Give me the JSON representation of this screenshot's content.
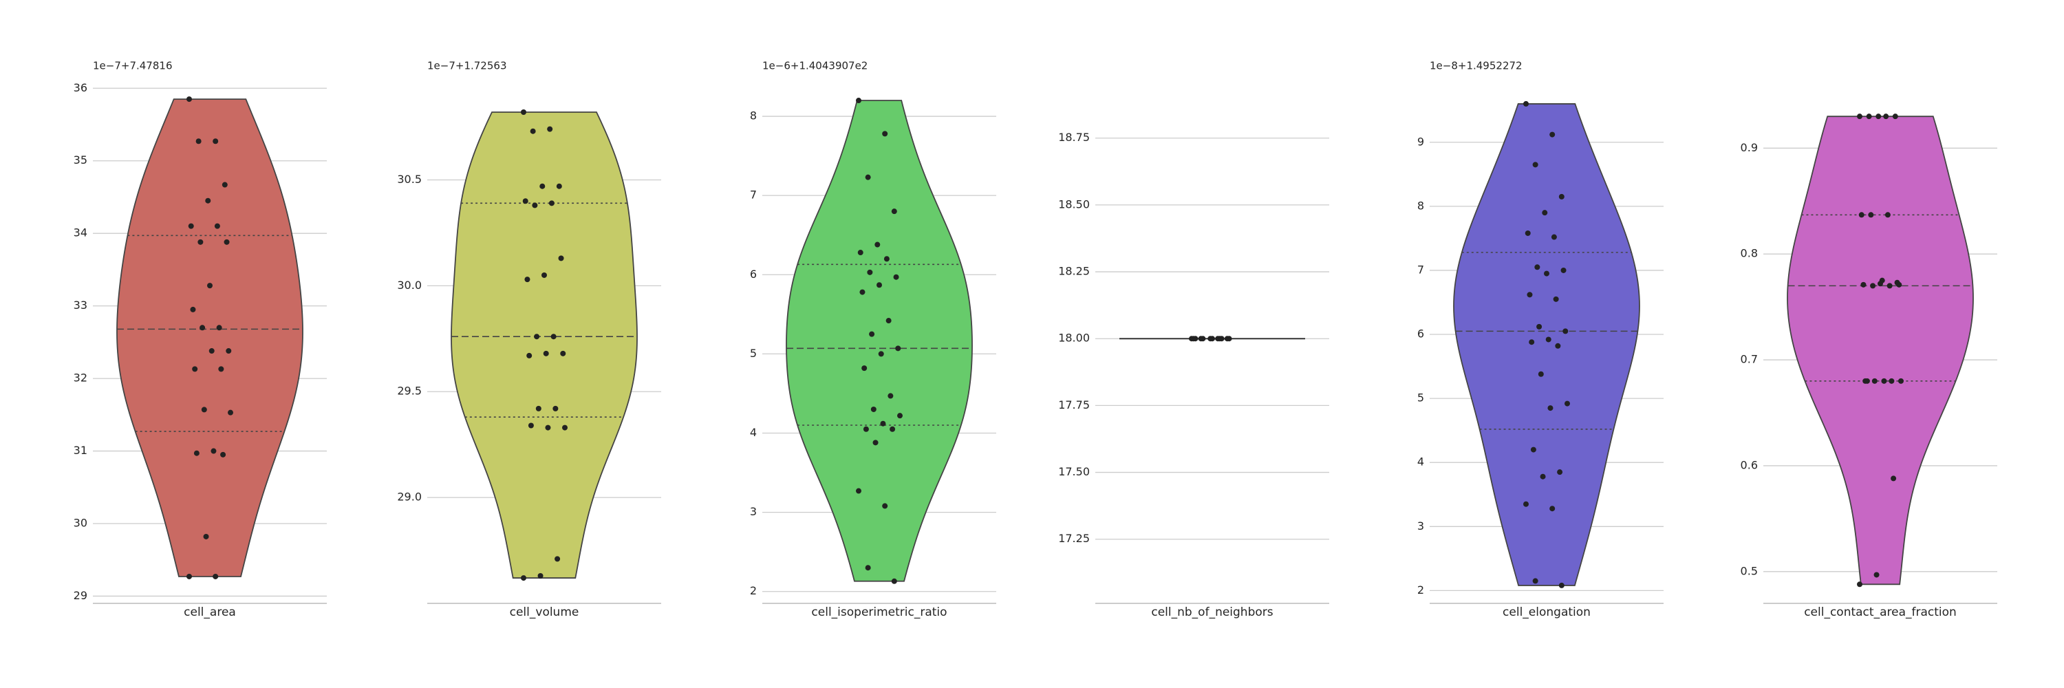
{
  "chart_data": [
    {
      "type": "violin",
      "offset_label": "1e−7+7.47816",
      "category": "cell_area",
      "color": "#c96a63",
      "values": [
        35.85,
        35.27,
        35.27,
        34.67,
        34.45,
        34.1,
        34.1,
        33.88,
        33.88,
        33.28,
        32.95,
        32.7,
        32.7,
        32.38,
        32.38,
        32.13,
        32.13,
        31.57,
        31.53,
        31.0,
        30.97,
        30.95,
        29.82,
        29.27,
        29.27
      ],
      "quartiles": [
        31.27,
        32.68,
        33.97
      ],
      "ylim": [
        28.9,
        36.05
      ],
      "yticks": [
        29,
        30,
        31,
        32,
        33,
        34,
        35,
        36
      ],
      "grid": true
    },
    {
      "type": "violin",
      "offset_label": "1e−7+1.72563",
      "category": "cell_volume",
      "color": "#c5cb68",
      "values": [
        30.82,
        30.74,
        30.73,
        30.47,
        30.47,
        30.4,
        30.39,
        30.38,
        30.13,
        30.05,
        30.03,
        29.76,
        29.76,
        29.68,
        29.68,
        29.67,
        29.42,
        29.42,
        29.33,
        29.33,
        29.34,
        28.71,
        28.63,
        28.62
      ],
      "quartiles": [
        29.38,
        29.76,
        30.39
      ],
      "ylim": [
        28.5,
        30.95
      ],
      "yticks": [
        {
          "value": 29,
          "label": "29.0"
        },
        29.5,
        {
          "value": 30,
          "label": "30.0"
        },
        30.5
      ],
      "grid": true
    },
    {
      "type": "violin",
      "offset_label": "1e−6+1.4043907e2",
      "category": "cell_isoperimetric_ratio",
      "color": "#67cb6b",
      "values": [
        8.2,
        7.78,
        7.23,
        6.8,
        6.38,
        6.28,
        6.2,
        6.03,
        5.97,
        5.87,
        5.78,
        5.42,
        5.25,
        5.07,
        5.0,
        4.82,
        4.47,
        4.3,
        4.22,
        4.12,
        4.05,
        4.05,
        3.88,
        3.27,
        3.08,
        2.3,
        2.13
      ],
      "quartiles": [
        4.1,
        5.07,
        6.13
      ],
      "ylim": [
        1.85,
        8.4
      ],
      "yticks": [
        2,
        3,
        4,
        5,
        6,
        7,
        8
      ],
      "grid": true
    },
    {
      "type": "violin",
      "category": "cell_nb_of_neighbors",
      "color": "#5a5a5a",
      "values": [
        18,
        18,
        18,
        18,
        18,
        18,
        18,
        18,
        18,
        18,
        18,
        18
      ],
      "ylim": [
        17.01,
        18.95
      ],
      "yticks": [
        17.25,
        {
          "value": 17.5,
          "label": "17.50"
        },
        17.75,
        {
          "value": 18,
          "label": "18.00"
        },
        18.25,
        {
          "value": 18.5,
          "label": "18.50"
        },
        18.75
      ],
      "grid": true
    },
    {
      "type": "violin",
      "offset_label": "1e−8+1.4952272",
      "category": "cell_elongation",
      "color": "#6e64cc",
      "values": [
        9.6,
        9.12,
        8.65,
        8.15,
        7.9,
        7.58,
        7.52,
        7.05,
        7.0,
        6.95,
        6.62,
        6.55,
        6.12,
        6.05,
        5.92,
        5.88,
        5.82,
        5.38,
        4.92,
        4.85,
        4.2,
        3.85,
        3.78,
        3.35,
        3.28,
        2.15,
        2.08
      ],
      "quartiles": [
        4.52,
        6.05,
        7.28
      ],
      "ylim": [
        1.8,
        9.9
      ],
      "yticks": [
        2,
        3,
        4,
        5,
        6,
        7,
        8,
        9
      ],
      "grid": true
    },
    {
      "type": "violin",
      "category": "cell_contact_area_fraction",
      "color": "#c767c4",
      "values": [
        0.93,
        0.93,
        0.93,
        0.93,
        0.93,
        0.837,
        0.837,
        0.837,
        0.773,
        0.772,
        0.771,
        0.77,
        0.77,
        0.771,
        0.775,
        0.68,
        0.68,
        0.68,
        0.68,
        0.68,
        0.68,
        0.588,
        0.497,
        0.488
      ],
      "quartiles": [
        0.68,
        0.77,
        0.837
      ],
      "ylim": [
        0.47,
        0.96
      ],
      "yticks": [
        0.5,
        0.6,
        0.7,
        0.8,
        0.9
      ],
      "grid": true
    }
  ]
}
